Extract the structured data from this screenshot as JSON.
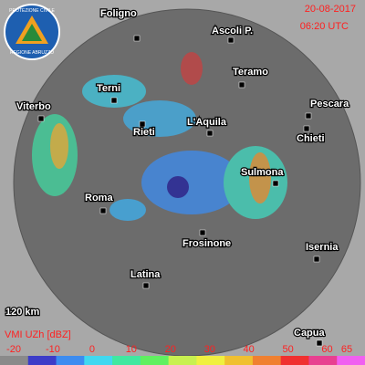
{
  "header": {
    "date": "20-08-2017",
    "time": "06:20 UTC"
  },
  "logo": {
    "top": "PROTEZIONE CIVILE",
    "bottom": "REGIONE ABRUZZO"
  },
  "cities": [
    {
      "name": "Foligno"
    },
    {
      "name": "Ascoli P."
    },
    {
      "name": "Teramo"
    },
    {
      "name": "Pescara"
    },
    {
      "name": "Terni"
    },
    {
      "name": "Viterbo"
    },
    {
      "name": "Rieti"
    },
    {
      "name": "L'Aquila"
    },
    {
      "name": "Chieti"
    },
    {
      "name": "Sulmona"
    },
    {
      "name": "Roma"
    },
    {
      "name": "Frosinone"
    },
    {
      "name": "Isernia"
    },
    {
      "name": "Latina"
    },
    {
      "name": "Capua"
    }
  ],
  "range_label": "120 km",
  "scale": {
    "title": "VMI UZh [dBZ]",
    "labels": [
      -20,
      -10,
      0,
      10,
      20,
      30,
      40,
      50,
      60,
      65
    ],
    "colors": [
      "#8a8a8a",
      "#3c3cc8",
      "#3c8cf0",
      "#40d8f0",
      "#40e8a0",
      "#60f060",
      "#c8f050",
      "#f0f040",
      "#f0c030",
      "#f08030",
      "#f03030",
      "#e84090",
      "#f060f0"
    ]
  }
}
